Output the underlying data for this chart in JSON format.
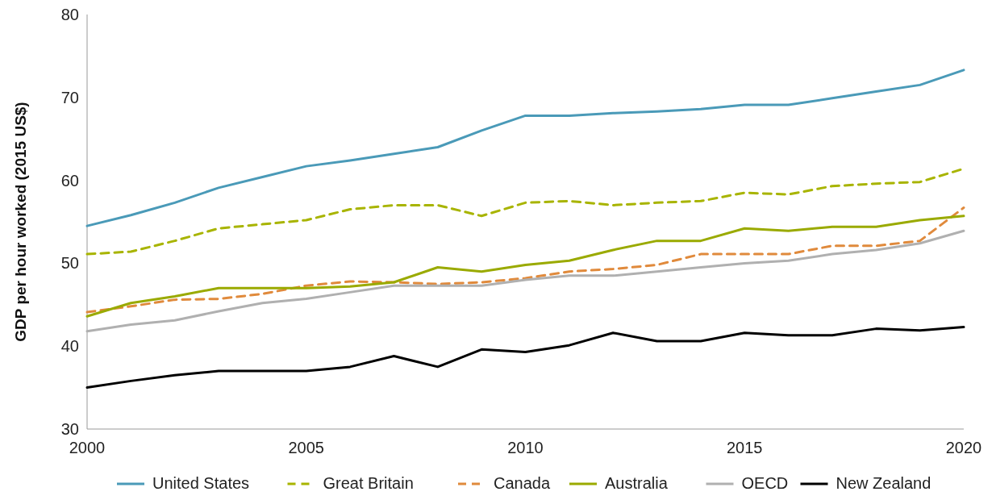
{
  "chart_data": {
    "type": "line",
    "ylabel": "GDP per hour worked (2015 US$)",
    "x": [
      2000,
      2001,
      2002,
      2003,
      2004,
      2005,
      2006,
      2007,
      2008,
      2009,
      2010,
      2011,
      2012,
      2013,
      2014,
      2015,
      2016,
      2017,
      2018,
      2019,
      2020
    ],
    "xlim": [
      2000,
      2020
    ],
    "xticks": [
      2000,
      2005,
      2010,
      2015,
      2020
    ],
    "ylim": [
      30,
      80
    ],
    "yticks": [
      30,
      40,
      50,
      60,
      70,
      80
    ],
    "grid": false,
    "legend": "bottom",
    "marker": "none",
    "series": [
      {
        "name": "United States",
        "color": "#4a9ab8",
        "line_style": "solid",
        "values": [
          54.5,
          55.8,
          57.3,
          59.1,
          60.4,
          61.7,
          62.4,
          63.2,
          64.0,
          66.0,
          67.8,
          67.8,
          68.1,
          68.3,
          68.6,
          69.1,
          69.1,
          69.9,
          70.7,
          71.5,
          73.3
        ]
      },
      {
        "name": "Great Britain",
        "color": "#a8b400",
        "line_style": "dashed",
        "values": [
          51.1,
          51.4,
          52.7,
          54.2,
          54.7,
          55.2,
          56.5,
          57.0,
          57.0,
          55.7,
          57.3,
          57.5,
          57.0,
          57.3,
          57.5,
          58.5,
          58.3,
          59.3,
          59.6,
          59.8,
          61.4
        ]
      },
      {
        "name": "Canada",
        "color": "#e08a3c",
        "line_style": "dashed",
        "values": [
          44.1,
          44.8,
          45.6,
          45.7,
          46.3,
          47.3,
          47.8,
          47.7,
          47.5,
          47.7,
          48.2,
          49.0,
          49.3,
          49.8,
          51.1,
          51.1,
          51.1,
          52.1,
          52.1,
          52.7,
          56.7
        ]
      },
      {
        "name": "Australia",
        "color": "#9aaa00",
        "line_style": "solid",
        "values": [
          43.6,
          45.2,
          46.0,
          47.0,
          47.0,
          47.0,
          47.2,
          47.7,
          49.5,
          49.0,
          49.8,
          50.3,
          51.6,
          52.7,
          52.7,
          54.2,
          53.9,
          54.4,
          54.4,
          55.2,
          55.7
        ]
      },
      {
        "name": "OECD",
        "color": "#b0b0b0",
        "line_style": "solid",
        "values": [
          41.8,
          42.6,
          43.1,
          44.2,
          45.2,
          45.7,
          46.5,
          47.3,
          47.3,
          47.3,
          48.0,
          48.5,
          48.5,
          49.0,
          49.5,
          50.0,
          50.3,
          51.1,
          51.6,
          52.4,
          53.9
        ]
      },
      {
        "name": "New Zealand",
        "color": "#000000",
        "line_style": "solid",
        "values": [
          35.0,
          35.8,
          36.5,
          37.0,
          37.0,
          37.0,
          37.5,
          38.8,
          37.5,
          39.6,
          39.3,
          40.1,
          41.6,
          40.6,
          40.6,
          41.6,
          41.3,
          41.3,
          42.1,
          41.9,
          42.3
        ]
      }
    ]
  }
}
